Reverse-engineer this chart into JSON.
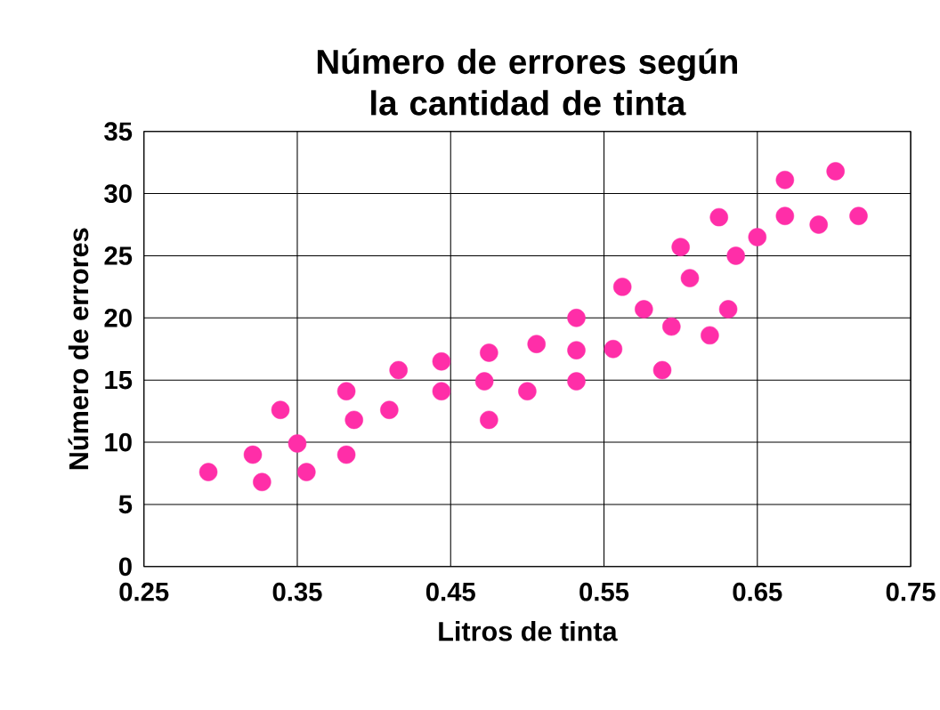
{
  "chart_data": {
    "type": "scatter",
    "title": "Número de errores según la cantidad de tinta",
    "xlabel": "Litros de tinta",
    "ylabel": "Número de errores",
    "xlim": [
      0.25,
      0.75
    ],
    "xticks": [
      0.25,
      0.35,
      0.45,
      0.55,
      0.65,
      0.75
    ],
    "ylim": [
      0,
      35
    ],
    "yticks": [
      0,
      5,
      10,
      15,
      20,
      25,
      30,
      35
    ],
    "grid": true,
    "marker": "circle",
    "series": [
      {
        "color": "#ff2ea8",
        "x": [
          0.292,
          0.321,
          0.327,
          0.339,
          0.35,
          0.356,
          0.382,
          0.382,
          0.387,
          0.41,
          0.416,
          0.444,
          0.444,
          0.472,
          0.475,
          0.475,
          0.5,
          0.506,
          0.532,
          0.532,
          0.532,
          0.556,
          0.562,
          0.576,
          0.588,
          0.594,
          0.6,
          0.606,
          0.619,
          0.625,
          0.631,
          0.636,
          0.65,
          0.668,
          0.668,
          0.69,
          0.701,
          0.716
        ],
        "values": [
          7.6,
          9.0,
          6.8,
          12.6,
          9.9,
          7.6,
          14.1,
          9.0,
          11.8,
          12.6,
          15.8,
          16.5,
          14.1,
          14.9,
          17.2,
          11.8,
          14.1,
          17.9,
          20.0,
          17.4,
          14.9,
          17.5,
          22.5,
          20.7,
          15.8,
          19.3,
          25.7,
          23.2,
          18.6,
          28.1,
          20.7,
          25.0,
          26.5,
          31.1,
          28.2,
          27.5,
          31.8,
          28.2
        ]
      }
    ]
  }
}
